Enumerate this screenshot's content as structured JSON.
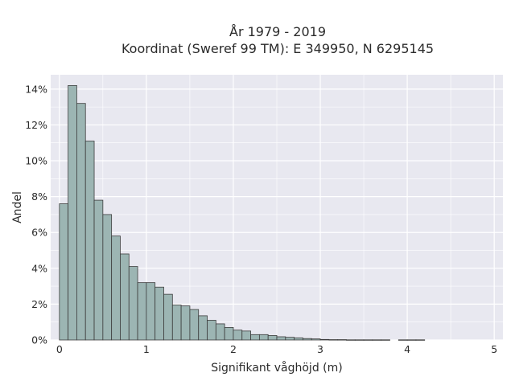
{
  "chart_data": {
    "type": "bar",
    "title": "År 1979 - 2019",
    "subtitle": "Koordinat (Sweref 99 TM): E 349950, N 6295145",
    "xlabel": "Signifikant våghöjd (m)",
    "ylabel": "Andel",
    "xlim": [
      -0.1,
      5.1
    ],
    "ylim": [
      0,
      14.8
    ],
    "x_ticks": [
      0,
      1,
      2,
      3,
      4,
      5
    ],
    "x_tick_labels": [
      "0",
      "1",
      "2",
      "3",
      "4",
      "5"
    ],
    "y_ticks": [
      0,
      2,
      4,
      6,
      8,
      10,
      12,
      14
    ],
    "y_tick_labels": [
      "0%",
      "2%",
      "4%",
      "6%",
      "8%",
      "10%",
      "12%",
      "14%"
    ],
    "grid": true,
    "bin_width": 0.1,
    "bin_starts": [
      0.0,
      0.1,
      0.2,
      0.3,
      0.4,
      0.5,
      0.6,
      0.7,
      0.8,
      0.9,
      1.0,
      1.1,
      1.2,
      1.3,
      1.4,
      1.5,
      1.6,
      1.7,
      1.8,
      1.9,
      2.0,
      2.1,
      2.2,
      2.3,
      2.4,
      2.5,
      2.6,
      2.7,
      2.8,
      2.9,
      3.0,
      3.1,
      3.2,
      3.3,
      3.4,
      3.5,
      3.6,
      3.7,
      3.8,
      3.9,
      4.0,
      4.1
    ],
    "values": [
      7.6,
      14.2,
      13.2,
      11.1,
      7.8,
      7.0,
      5.8,
      4.8,
      4.1,
      3.2,
      3.2,
      2.95,
      2.55,
      1.95,
      1.9,
      1.7,
      1.35,
      1.1,
      0.9,
      0.7,
      0.55,
      0.5,
      0.3,
      0.3,
      0.25,
      0.18,
      0.15,
      0.12,
      0.08,
      0.06,
      0.03,
      0.02,
      0.02,
      0.01,
      0.01,
      0.01,
      0.01,
      0.01,
      0.0,
      0.01,
      0.01,
      0.01
    ],
    "colors": {
      "bar_fill": "#9cb5b3",
      "bar_stroke": "#3d3d3d",
      "plot_background": "#e8e8f0",
      "grid": "#ffffff"
    }
  }
}
